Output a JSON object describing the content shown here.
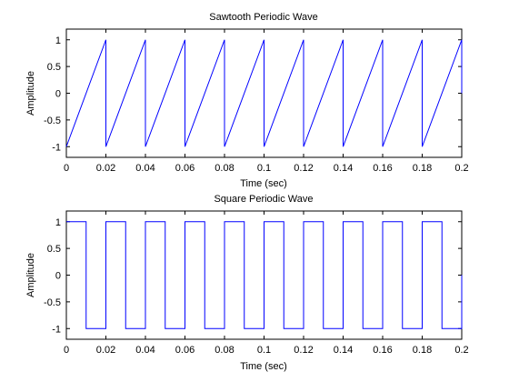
{
  "chart_data": [
    {
      "type": "line",
      "title": "Sawtooth Periodic Wave",
      "xlabel": "Time (sec)",
      "ylabel": "Amplitude",
      "xlim": [
        0,
        0.2
      ],
      "ylim": [
        -1.2,
        1.2
      ],
      "x_ticks": [
        0,
        0.02,
        0.04,
        0.06,
        0.08,
        0.1,
        0.12,
        0.14,
        0.16,
        0.18,
        0.2
      ],
      "x_tick_labels": [
        "0",
        "0.02",
        "0.04",
        "0.06",
        "0.08",
        "0.1",
        "0.12",
        "0.14",
        "0.16",
        "0.18",
        "0.2"
      ],
      "y_ticks": [
        1,
        0.5,
        0,
        -0.5,
        -1
      ],
      "y_tick_labels": [
        "1",
        "0.5",
        "0",
        "-0.5",
        "-1"
      ],
      "grid": false,
      "series": [
        {
          "color": "#0000ff",
          "x": [
            0,
            0.02,
            0.02,
            0.04,
            0.04,
            0.06,
            0.06,
            0.08,
            0.08,
            0.1,
            0.1,
            0.12,
            0.12,
            0.14,
            0.14,
            0.16,
            0.16,
            0.18,
            0.18,
            0.2,
            0.2
          ],
          "y": [
            -1,
            1,
            -1,
            1,
            -1,
            1,
            -1,
            1,
            -1,
            1,
            -1,
            1,
            -1,
            1,
            -1,
            1,
            -1,
            1,
            -1,
            1,
            0
          ]
        }
      ]
    },
    {
      "type": "line",
      "title": "Square Periodic Wave",
      "xlabel": "Time (sec)",
      "ylabel": "Amplitude",
      "xlim": [
        0,
        0.2
      ],
      "ylim": [
        -1.2,
        1.2
      ],
      "x_ticks": [
        0,
        0.02,
        0.04,
        0.06,
        0.08,
        0.1,
        0.12,
        0.14,
        0.16,
        0.18,
        0.2
      ],
      "x_tick_labels": [
        "0",
        "0.02",
        "0.04",
        "0.06",
        "0.08",
        "0.1",
        "0.12",
        "0.14",
        "0.16",
        "0.18",
        "0.2"
      ],
      "y_ticks": [
        1,
        0.5,
        0,
        -0.5,
        -1
      ],
      "y_tick_labels": [
        "1",
        "0.5",
        "0",
        "-0.5",
        "-1"
      ],
      "grid": false,
      "series": [
        {
          "color": "#0000ff",
          "x": [
            0,
            0.01,
            0.01,
            0.02,
            0.02,
            0.03,
            0.03,
            0.04,
            0.04,
            0.05,
            0.05,
            0.06,
            0.06,
            0.07,
            0.07,
            0.08,
            0.08,
            0.09,
            0.09,
            0.1,
            0.1,
            0.11,
            0.11,
            0.12,
            0.12,
            0.13,
            0.13,
            0.14,
            0.14,
            0.15,
            0.15,
            0.16,
            0.16,
            0.17,
            0.17,
            0.18,
            0.18,
            0.19,
            0.19,
            0.2,
            0.2
          ],
          "y": [
            1,
            1,
            -1,
            -1,
            1,
            1,
            -1,
            -1,
            1,
            1,
            -1,
            -1,
            1,
            1,
            -1,
            -1,
            1,
            1,
            -1,
            -1,
            1,
            1,
            -1,
            -1,
            1,
            1,
            -1,
            -1,
            1,
            1,
            -1,
            -1,
            1,
            1,
            -1,
            -1,
            1,
            1,
            -1,
            -1,
            0
          ]
        }
      ]
    }
  ]
}
